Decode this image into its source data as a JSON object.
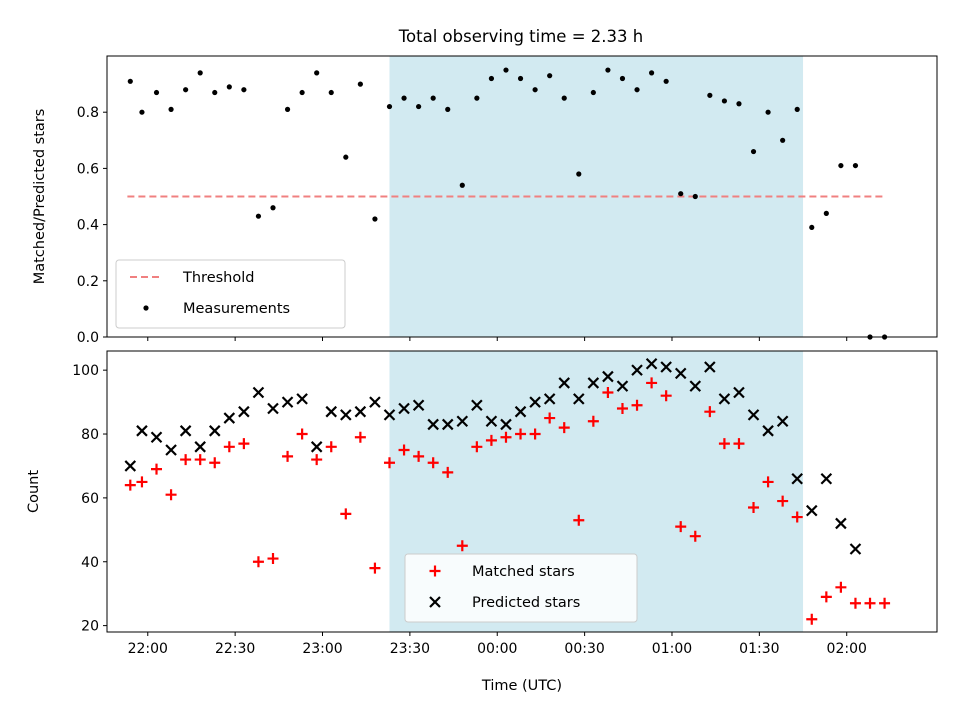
{
  "title": "Total observing time = 2.33 h",
  "colors": {
    "threshold": "#f08080",
    "measurements": "#000000",
    "matched": "#ff0000",
    "predicted": "#000000",
    "shade": "#add8e6"
  },
  "chart_data": [
    {
      "type": "scatter",
      "ylabel": "Matched/Predicted stars",
      "x_range": [
        "21:46",
        "02:31"
      ],
      "ylim": [
        0,
        1.0
      ],
      "y_ticks": [
        "0.0",
        "0.2",
        "0.4",
        "0.6",
        "0.8"
      ],
      "shaded_span": [
        "23:23",
        "01:45"
      ],
      "legend": {
        "position": "lower-left",
        "entries": [
          {
            "label": "Threshold",
            "marker": "dashed-line"
          },
          {
            "label": "Measurements",
            "marker": "dot"
          }
        ]
      },
      "series": [
        {
          "name": "Threshold",
          "style": "dashed-line",
          "points": [
            [
              "21:53",
              0.5
            ],
            [
              "02:13",
              0.5
            ]
          ]
        },
        {
          "name": "Measurements",
          "style": "dot",
          "points": [
            [
              "21:54",
              0.91
            ],
            [
              "21:58",
              0.8
            ],
            [
              "22:03",
              0.87
            ],
            [
              "22:08",
              0.81
            ],
            [
              "22:13",
              0.88
            ],
            [
              "22:18",
              0.94
            ],
            [
              "22:23",
              0.87
            ],
            [
              "22:28",
              0.89
            ],
            [
              "22:33",
              0.88
            ],
            [
              "22:38",
              0.43
            ],
            [
              "22:43",
              0.46
            ],
            [
              "22:48",
              0.81
            ],
            [
              "22:53",
              0.87
            ],
            [
              "22:58",
              0.94
            ],
            [
              "23:03",
              0.87
            ],
            [
              "23:08",
              0.64
            ],
            [
              "23:13",
              0.9
            ],
            [
              "23:18",
              0.42
            ],
            [
              "23:23",
              0.82
            ],
            [
              "23:28",
              0.85
            ],
            [
              "23:33",
              0.82
            ],
            [
              "23:38",
              0.85
            ],
            [
              "23:43",
              0.81
            ],
            [
              "23:48",
              0.54
            ],
            [
              "23:53",
              0.85
            ],
            [
              "23:58",
              0.92
            ],
            [
              "00:03",
              0.95
            ],
            [
              "00:08",
              0.92
            ],
            [
              "00:13",
              0.88
            ],
            [
              "00:18",
              0.93
            ],
            [
              "00:23",
              0.85
            ],
            [
              "00:28",
              0.58
            ],
            [
              "00:33",
              0.87
            ],
            [
              "00:38",
              0.95
            ],
            [
              "00:43",
              0.92
            ],
            [
              "00:48",
              0.88
            ],
            [
              "00:53",
              0.94
            ],
            [
              "00:58",
              0.91
            ],
            [
              "01:03",
              0.51
            ],
            [
              "01:08",
              0.5
            ],
            [
              "01:13",
              0.86
            ],
            [
              "01:18",
              0.84
            ],
            [
              "01:23",
              0.83
            ],
            [
              "01:28",
              0.66
            ],
            [
              "01:33",
              0.8
            ],
            [
              "01:38",
              0.7
            ],
            [
              "01:43",
              0.81
            ],
            [
              "01:48",
              0.39
            ],
            [
              "01:53",
              0.44
            ],
            [
              "01:58",
              0.61
            ],
            [
              "02:03",
              0.61
            ],
            [
              "02:08",
              0.0
            ],
            [
              "02:13",
              0.0
            ]
          ]
        }
      ]
    },
    {
      "type": "scatter",
      "ylabel": "Count",
      "xlabel": "Time (UTC)",
      "x_range": [
        "21:46",
        "02:31"
      ],
      "ylim": [
        18,
        106
      ],
      "y_ticks": [
        "20",
        "40",
        "60",
        "80",
        "100"
      ],
      "x_ticks": [
        "22:00",
        "22:30",
        "23:00",
        "23:30",
        "00:00",
        "00:30",
        "01:00",
        "01:30",
        "02:00"
      ],
      "shaded_span": [
        "23:23",
        "01:45"
      ],
      "legend": {
        "position": "lower-center",
        "entries": [
          {
            "label": "Matched stars",
            "marker": "plus"
          },
          {
            "label": "Predicted stars",
            "marker": "x"
          }
        ]
      },
      "series": [
        {
          "name": "Matched stars",
          "style": "plus",
          "points": [
            [
              "21:54",
              64
            ],
            [
              "21:58",
              65
            ],
            [
              "22:03",
              69
            ],
            [
              "22:08",
              61
            ],
            [
              "22:13",
              72
            ],
            [
              "22:18",
              72
            ],
            [
              "22:23",
              71
            ],
            [
              "22:28",
              76
            ],
            [
              "22:33",
              77
            ],
            [
              "22:38",
              40
            ],
            [
              "22:43",
              41
            ],
            [
              "22:48",
              73
            ],
            [
              "22:53",
              80
            ],
            [
              "22:58",
              72
            ],
            [
              "23:03",
              76
            ],
            [
              "23:08",
              55
            ],
            [
              "23:13",
              79
            ],
            [
              "23:18",
              38
            ],
            [
              "23:23",
              71
            ],
            [
              "23:28",
              75
            ],
            [
              "23:33",
              73
            ],
            [
              "23:38",
              71
            ],
            [
              "23:43",
              68
            ],
            [
              "23:48",
              45
            ],
            [
              "23:53",
              76
            ],
            [
              "23:58",
              78
            ],
            [
              "00:03",
              79
            ],
            [
              "00:08",
              80
            ],
            [
              "00:13",
              80
            ],
            [
              "00:18",
              85
            ],
            [
              "00:23",
              82
            ],
            [
              "00:28",
              53
            ],
            [
              "00:33",
              84
            ],
            [
              "00:38",
              93
            ],
            [
              "00:43",
              88
            ],
            [
              "00:48",
              89
            ],
            [
              "00:53",
              96
            ],
            [
              "00:58",
              92
            ],
            [
              "01:03",
              51
            ],
            [
              "01:08",
              48
            ],
            [
              "01:13",
              87
            ],
            [
              "01:18",
              77
            ],
            [
              "01:23",
              77
            ],
            [
              "01:28",
              57
            ],
            [
              "01:33",
              65
            ],
            [
              "01:38",
              59
            ],
            [
              "01:43",
              54
            ],
            [
              "01:48",
              22
            ],
            [
              "01:53",
              29
            ],
            [
              "01:58",
              32
            ],
            [
              "02:03",
              27
            ],
            [
              "02:08",
              27
            ],
            [
              "02:13",
              27
            ]
          ]
        },
        {
          "name": "Predicted stars",
          "style": "x",
          "points": [
            [
              "21:54",
              70
            ],
            [
              "21:58",
              81
            ],
            [
              "22:03",
              79
            ],
            [
              "22:08",
              75
            ],
            [
              "22:13",
              81
            ],
            [
              "22:18",
              76
            ],
            [
              "22:23",
              81
            ],
            [
              "22:28",
              85
            ],
            [
              "22:33",
              87
            ],
            [
              "22:38",
              93
            ],
            [
              "22:43",
              88
            ],
            [
              "22:48",
              90
            ],
            [
              "22:53",
              91
            ],
            [
              "22:58",
              76
            ],
            [
              "23:03",
              87
            ],
            [
              "23:08",
              86
            ],
            [
              "23:13",
              87
            ],
            [
              "23:18",
              90
            ],
            [
              "23:23",
              86
            ],
            [
              "23:28",
              88
            ],
            [
              "23:33",
              89
            ],
            [
              "23:38",
              83
            ],
            [
              "23:43",
              83
            ],
            [
              "23:48",
              84
            ],
            [
              "23:53",
              89
            ],
            [
              "23:58",
              84
            ],
            [
              "00:03",
              83
            ],
            [
              "00:08",
              87
            ],
            [
              "00:13",
              90
            ],
            [
              "00:18",
              91
            ],
            [
              "00:23",
              96
            ],
            [
              "00:28",
              91
            ],
            [
              "00:33",
              96
            ],
            [
              "00:38",
              98
            ],
            [
              "00:43",
              95
            ],
            [
              "00:48",
              100
            ],
            [
              "00:53",
              102
            ],
            [
              "00:58",
              101
            ],
            [
              "01:03",
              99
            ],
            [
              "01:08",
              95
            ],
            [
              "01:13",
              101
            ],
            [
              "01:18",
              91
            ],
            [
              "01:23",
              93
            ],
            [
              "01:28",
              86
            ],
            [
              "01:33",
              81
            ],
            [
              "01:38",
              84
            ],
            [
              "01:43",
              66
            ],
            [
              "01:48",
              56
            ],
            [
              "01:53",
              66
            ],
            [
              "01:58",
              52
            ],
            [
              "02:03",
              44
            ]
          ]
        }
      ]
    }
  ]
}
